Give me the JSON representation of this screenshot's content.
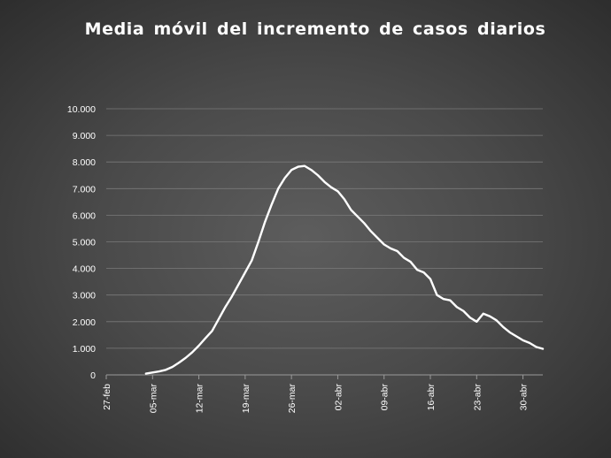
{
  "chart_data": {
    "type": "line",
    "title": "Media móvil del incremento de casos diarios",
    "xlabel": "",
    "ylabel": "",
    "ylim": [
      0,
      10000
    ],
    "yticks": [
      0,
      1000,
      2000,
      3000,
      4000,
      5000,
      6000,
      7000,
      8000,
      9000,
      10000
    ],
    "ytick_labels": [
      "0",
      "1.000",
      "2.000",
      "3.000",
      "4.000",
      "5.000",
      "6.000",
      "7.000",
      "8.000",
      "9.000",
      "10.000"
    ],
    "x_start": "2020-02-27",
    "x_end": "2020-05-03",
    "xticks": [
      "2020-02-27",
      "2020-03-05",
      "2020-03-12",
      "2020-03-19",
      "2020-03-26",
      "2020-04-02",
      "2020-04-09",
      "2020-04-16",
      "2020-04-23",
      "2020-04-30"
    ],
    "xtick_labels": [
      "27-feb",
      "05-mar",
      "12-mar",
      "19-mar",
      "26-mar",
      "02-abr",
      "09-abr",
      "16-abr",
      "23-abr",
      "30-abr"
    ],
    "grid": true,
    "legend": "none",
    "series": [
      {
        "name": "",
        "color": "#ffffff",
        "points": [
          [
            "2020-03-04",
            50
          ],
          [
            "2020-03-05",
            90
          ],
          [
            "2020-03-06",
            130
          ],
          [
            "2020-03-07",
            190
          ],
          [
            "2020-03-08",
            300
          ],
          [
            "2020-03-09",
            460
          ],
          [
            "2020-03-10",
            640
          ],
          [
            "2020-03-11",
            850
          ],
          [
            "2020-03-12",
            1100
          ],
          [
            "2020-03-13",
            1380
          ],
          [
            "2020-03-14",
            1650
          ],
          [
            "2020-03-15",
            2100
          ],
          [
            "2020-03-16",
            2550
          ],
          [
            "2020-03-17",
            2950
          ],
          [
            "2020-03-18",
            3400
          ],
          [
            "2020-03-19",
            3850
          ],
          [
            "2020-03-20",
            4300
          ],
          [
            "2020-03-21",
            5000
          ],
          [
            "2020-03-22",
            5750
          ],
          [
            "2020-03-23",
            6400
          ],
          [
            "2020-03-24",
            7000
          ],
          [
            "2020-03-25",
            7400
          ],
          [
            "2020-03-26",
            7700
          ],
          [
            "2020-03-27",
            7820
          ],
          [
            "2020-03-28",
            7850
          ],
          [
            "2020-03-29",
            7700
          ],
          [
            "2020-03-30",
            7500
          ],
          [
            "2020-03-31",
            7250
          ],
          [
            "2020-04-01",
            7050
          ],
          [
            "2020-04-02",
            6900
          ],
          [
            "2020-04-03",
            6600
          ],
          [
            "2020-04-04",
            6200
          ],
          [
            "2020-04-05",
            5950
          ],
          [
            "2020-04-06",
            5700
          ],
          [
            "2020-04-07",
            5400
          ],
          [
            "2020-04-08",
            5150
          ],
          [
            "2020-04-09",
            4900
          ],
          [
            "2020-04-10",
            4750
          ],
          [
            "2020-04-11",
            4650
          ],
          [
            "2020-04-12",
            4400
          ],
          [
            "2020-04-13",
            4250
          ],
          [
            "2020-04-14",
            3950
          ],
          [
            "2020-04-15",
            3850
          ],
          [
            "2020-04-16",
            3600
          ],
          [
            "2020-04-17",
            3000
          ],
          [
            "2020-04-18",
            2850
          ],
          [
            "2020-04-19",
            2800
          ],
          [
            "2020-04-20",
            2550
          ],
          [
            "2020-04-21",
            2400
          ],
          [
            "2020-04-22",
            2150
          ],
          [
            "2020-04-23",
            2000
          ],
          [
            "2020-04-24",
            2300
          ],
          [
            "2020-04-25",
            2200
          ],
          [
            "2020-04-26",
            2050
          ],
          [
            "2020-04-27",
            1800
          ],
          [
            "2020-04-28",
            1600
          ],
          [
            "2020-04-29",
            1450
          ],
          [
            "2020-04-30",
            1300
          ],
          [
            "2020-05-01",
            1200
          ],
          [
            "2020-05-02",
            1050
          ],
          [
            "2020-05-03",
            980
          ]
        ]
      }
    ]
  }
}
